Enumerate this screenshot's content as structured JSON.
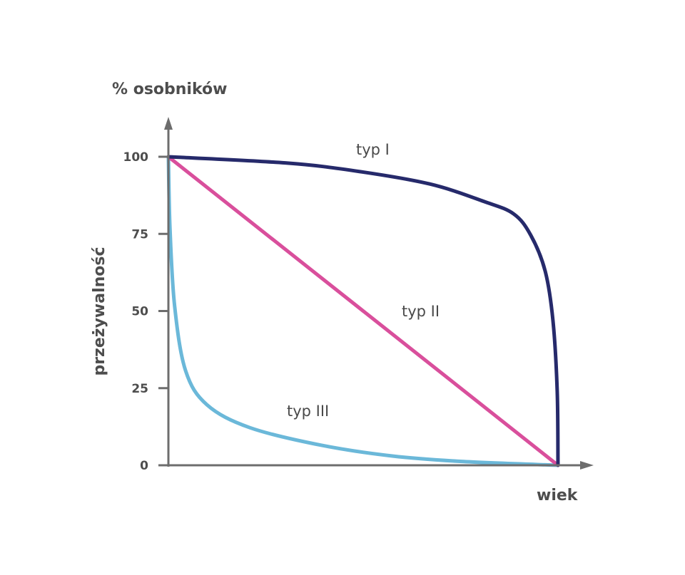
{
  "chart_data": {
    "type": "line",
    "title": "% osobników",
    "ylabel": "przeżywalność",
    "xlabel": "wiek",
    "ylim": [
      0,
      100
    ],
    "yticks": [
      0,
      25,
      50,
      75,
      100
    ],
    "xlim": [
      0,
      1
    ],
    "grid": false,
    "legend": "none",
    "series": [
      {
        "name": "typ I",
        "color": "#262a6b",
        "x": [
          0,
          0.3,
          0.48,
          0.67,
          0.81,
          0.886,
          0.93,
          0.967,
          0.987,
          0.998,
          1
        ],
        "y": [
          100,
          98,
          95.4,
          91.2,
          85.5,
          81.5,
          74.6,
          63,
          47,
          24,
          0
        ]
      },
      {
        "name": "typ II",
        "color": "#d94f9c",
        "x": [
          0,
          1
        ],
        "y": [
          100,
          0
        ]
      },
      {
        "name": "typ III",
        "color": "#6bb8d9",
        "x": [
          0,
          0.004,
          0.016,
          0.044,
          0.099,
          0.209,
          0.392,
          0.575,
          0.758,
          1
        ],
        "y": [
          100,
          77,
          51.6,
          30.7,
          19.6,
          12.2,
          6.5,
          3,
          1.2,
          0
        ]
      }
    ]
  }
}
